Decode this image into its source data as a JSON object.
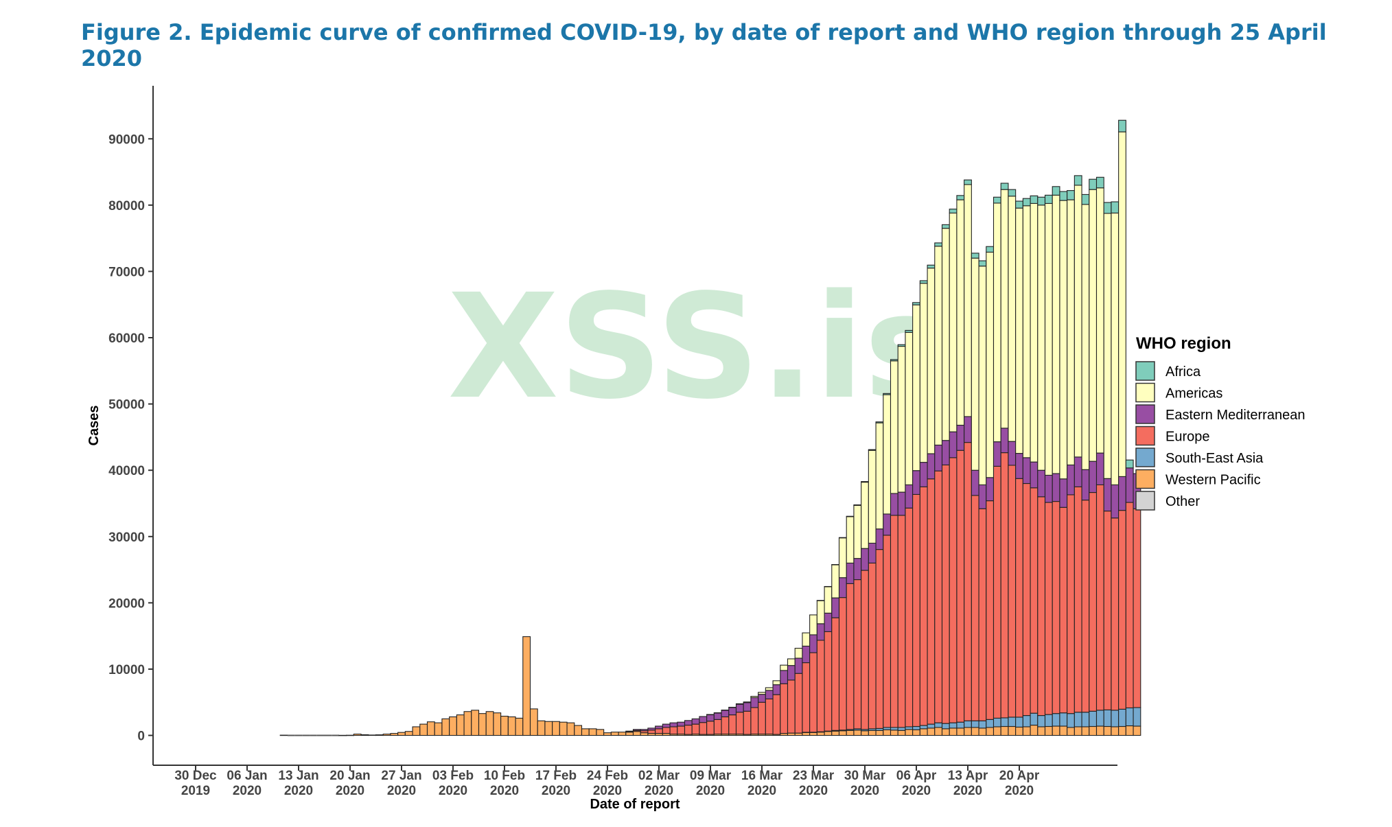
{
  "page": {
    "title": "Figure 2. Epidemic curve of confirmed COVID-19, by date of report and WHO region through 25 April 2020"
  },
  "watermark": "XSS.is",
  "chart_data": {
    "type": "bar",
    "stacked": true,
    "xlabel": "Date of report",
    "ylabel": "Cases",
    "ylim": [
      -4500,
      98000
    ],
    "yticks": [
      0,
      10000,
      20000,
      30000,
      40000,
      50000,
      60000,
      70000,
      80000,
      90000
    ],
    "x_start": "2019-12-30",
    "x_end": "2020-04-25",
    "first_bar": "2020-01-11",
    "x_ticks": [
      {
        "line1": "30 Dec",
        "line2": "2019"
      },
      {
        "line1": "06 Jan",
        "line2": "2020"
      },
      {
        "line1": "13 Jan",
        "line2": "2020"
      },
      {
        "line1": "20 Jan",
        "line2": "2020"
      },
      {
        "line1": "27 Jan",
        "line2": "2020"
      },
      {
        "line1": "03 Feb",
        "line2": "2020"
      },
      {
        "line1": "10 Feb",
        "line2": "2020"
      },
      {
        "line1": "17 Feb",
        "line2": "2020"
      },
      {
        "line1": "24 Feb",
        "line2": "2020"
      },
      {
        "line1": "02 Mar",
        "line2": "2020"
      },
      {
        "line1": "09 Mar",
        "line2": "2020"
      },
      {
        "line1": "16 Mar",
        "line2": "2020"
      },
      {
        "line1": "23 Mar",
        "line2": "2020"
      },
      {
        "line1": "30 Mar",
        "line2": "2020"
      },
      {
        "line1": "06 Apr",
        "line2": "2020"
      },
      {
        "line1": "13 Apr",
        "line2": "2020"
      },
      {
        "line1": "20 Apr",
        "line2": "2020"
      }
    ],
    "legend": {
      "title": "WHO region",
      "position": "right",
      "items": [
        {
          "name": "Africa",
          "color": "#7fcdbb"
        },
        {
          "name": "Americas",
          "color": "#ffffbf"
        },
        {
          "name": "Eastern Mediterranean",
          "color": "#984ea3"
        },
        {
          "name": "Europe",
          "color": "#f46d5f"
        },
        {
          "name": "South-East Asia",
          "color": "#74a9cf"
        },
        {
          "name": "Western Pacific",
          "color": "#fdae61"
        },
        {
          "name": "Other",
          "color": "#d3d3d3"
        }
      ]
    },
    "stack_order": [
      "Western Pacific",
      "South-East Asia",
      "Europe",
      "Eastern Mediterranean",
      "Americas",
      "Africa"
    ],
    "series": [
      {
        "name": "Western Pacific",
        "values": [
          41,
          0,
          0,
          0,
          0,
          0,
          0,
          0,
          17,
          30,
          200,
          100,
          60,
          90,
          200,
          300,
          450,
          600,
          1300,
          1700,
          2050,
          1900,
          2500,
          2800,
          3100,
          3600,
          3800,
          3300,
          3600,
          3400,
          2900,
          2800,
          2600,
          14900,
          4000,
          2200,
          2100,
          2100,
          2000,
          1900,
          1500,
          1000,
          1000,
          900,
          400,
          500,
          500,
          500,
          600,
          400,
          300,
          300,
          300,
          200,
          200,
          150,
          200,
          150,
          150,
          200,
          200,
          200,
          200,
          150,
          200,
          200,
          200,
          150,
          300,
          350,
          350,
          450,
          450,
          500,
          600,
          650,
          700,
          750,
          800,
          700,
          750,
          750,
          850,
          800,
          750,
          900,
          850,
          1000,
          1100,
          1200,
          1000,
          1100,
          1100,
          1200,
          1200,
          1100,
          1200,
          1300,
          1350,
          1350,
          1250,
          1300,
          1550,
          1300,
          1350,
          1400,
          1400,
          1200,
          1300,
          1300,
          1350,
          1400,
          1350,
          1300,
          1350,
          1450,
          1400
        ]
      },
      {
        "name": "South-East Asia",
        "values": [
          0,
          0,
          0,
          0,
          0,
          0,
          0,
          0,
          0,
          0,
          0,
          0,
          0,
          0,
          0,
          0,
          0,
          0,
          0,
          0,
          0,
          0,
          0,
          0,
          0,
          0,
          0,
          0,
          0,
          0,
          0,
          0,
          0,
          0,
          0,
          0,
          0,
          0,
          0,
          0,
          0,
          0,
          0,
          0,
          0,
          0,
          0,
          0,
          0,
          0,
          0,
          0,
          0,
          0,
          0,
          0,
          0,
          0,
          0,
          0,
          0,
          0,
          0,
          0,
          0,
          0,
          0,
          0,
          0,
          0,
          0,
          20,
          30,
          50,
          50,
          100,
          100,
          150,
          200,
          200,
          250,
          300,
          350,
          400,
          450,
          400,
          500,
          500,
          600,
          700,
          800,
          800,
          900,
          1000,
          1000,
          1100,
          1200,
          1300,
          1300,
          1400,
          1500,
          1700,
          1800,
          1700,
          1800,
          1900,
          2000,
          2100,
          2200,
          2200,
          2300,
          2400,
          2500,
          2500,
          2600,
          2700,
          2800,
          2800
        ]
      },
      {
        "name": "Europe",
        "values": [
          0,
          0,
          0,
          0,
          0,
          0,
          0,
          0,
          0,
          0,
          0,
          0,
          0,
          0,
          0,
          0,
          0,
          0,
          0,
          0,
          0,
          0,
          0,
          0,
          0,
          0,
          0,
          0,
          0,
          0,
          0,
          0,
          0,
          0,
          0,
          0,
          0,
          0,
          0,
          0,
          0,
          0,
          0,
          0,
          0,
          0,
          0,
          50,
          150,
          300,
          500,
          700,
          900,
          1100,
          1200,
          1400,
          1500,
          1800,
          2000,
          2200,
          2600,
          2900,
          3300,
          3500,
          4000,
          4800,
          5300,
          6000,
          7500,
          8000,
          9000,
          10500,
          12000,
          13800,
          15000,
          17000,
          20000,
          22000,
          22500,
          24000,
          25000,
          27000,
          29000,
          32000,
          32000,
          33000,
          35000,
          36000,
          37000,
          38000,
          39000,
          40000,
          41000,
          42000,
          34000,
          32000,
          33000,
          38000,
          40000,
          38000,
          36000,
          35000,
          34000,
          33000,
          32000,
          32000,
          31000,
          33000,
          34000,
          32000,
          33000,
          34000,
          30000,
          29000,
          30000,
          31000,
          30000
        ]
      },
      {
        "name": "Eastern Mediterranean",
        "values": [
          0,
          0,
          0,
          0,
          0,
          0,
          0,
          0,
          0,
          0,
          0,
          0,
          0,
          0,
          0,
          0,
          0,
          0,
          0,
          0,
          0,
          0,
          0,
          0,
          0,
          0,
          0,
          0,
          0,
          0,
          0,
          0,
          0,
          0,
          0,
          0,
          0,
          0,
          0,
          0,
          0,
          0,
          0,
          0,
          0,
          0,
          0,
          100,
          150,
          200,
          300,
          400,
          500,
          600,
          600,
          700,
          800,
          900,
          1000,
          1000,
          1000,
          1100,
          1200,
          1300,
          1500,
          1200,
          1300,
          1500,
          2000,
          2200,
          2300,
          2500,
          2700,
          2500,
          2800,
          3000,
          3000,
          3100,
          3200,
          3300,
          3000,
          3100,
          3200,
          3300,
          3500,
          3500,
          3600,
          3700,
          3800,
          3900,
          3700,
          3900,
          3800,
          3900,
          3800,
          3600,
          3500,
          3700,
          3700,
          3600,
          3800,
          3900,
          3900,
          4000,
          4100,
          4200,
          4300,
          4500,
          4500,
          4600,
          4700,
          4800,
          4900,
          5000,
          5100,
          5200,
          5300
        ]
      },
      {
        "name": "Americas",
        "values": [
          0,
          0,
          0,
          0,
          0,
          0,
          0,
          0,
          0,
          0,
          0,
          0,
          0,
          0,
          0,
          0,
          0,
          0,
          0,
          0,
          0,
          0,
          0,
          0,
          0,
          0,
          0,
          0,
          0,
          0,
          0,
          0,
          0,
          0,
          0,
          0,
          0,
          0,
          0,
          0,
          0,
          0,
          0,
          0,
          0,
          0,
          0,
          0,
          0,
          0,
          0,
          0,
          0,
          0,
          0,
          0,
          0,
          0,
          10,
          20,
          30,
          50,
          80,
          100,
          200,
          300,
          400,
          600,
          800,
          1000,
          1500,
          2000,
          3000,
          3500,
          4000,
          5000,
          6000,
          7000,
          8000,
          10000,
          14000,
          16000,
          18000,
          20000,
          22000,
          23000,
          25000,
          27000,
          28000,
          30000,
          32000,
          33000,
          34000,
          35000,
          32000,
          33000,
          34000,
          36000,
          36000,
          37000,
          37000,
          38000,
          39000,
          40000,
          41000,
          42000,
          42000,
          40000,
          41000,
          40000,
          41000,
          40000,
          40000,
          41000,
          52000
        ]
      },
      {
        "name": "Africa",
        "values": [
          0,
          0,
          0,
          0,
          0,
          0,
          0,
          0,
          0,
          0,
          0,
          0,
          0,
          0,
          0,
          0,
          0,
          0,
          0,
          0,
          0,
          0,
          0,
          0,
          0,
          0,
          0,
          0,
          0,
          0,
          0,
          0,
          0,
          0,
          0,
          0,
          0,
          0,
          0,
          0,
          0,
          0,
          0,
          0,
          0,
          0,
          0,
          0,
          0,
          0,
          0,
          0,
          0,
          0,
          0,
          0,
          0,
          0,
          0,
          0,
          0,
          0,
          0,
          0,
          0,
          0,
          0,
          0,
          0,
          0,
          0,
          0,
          0,
          10,
          20,
          30,
          50,
          60,
          80,
          100,
          120,
          150,
          180,
          200,
          250,
          300,
          350,
          400,
          450,
          500,
          550,
          600,
          650,
          700,
          750,
          800,
          850,
          900,
          950,
          1000,
          1050,
          1100,
          1150,
          1200,
          1250,
          1300,
          1350,
          1400,
          1450,
          1500,
          1550,
          1600,
          1650,
          1700,
          1750,
          1200
        ]
      }
    ]
  }
}
